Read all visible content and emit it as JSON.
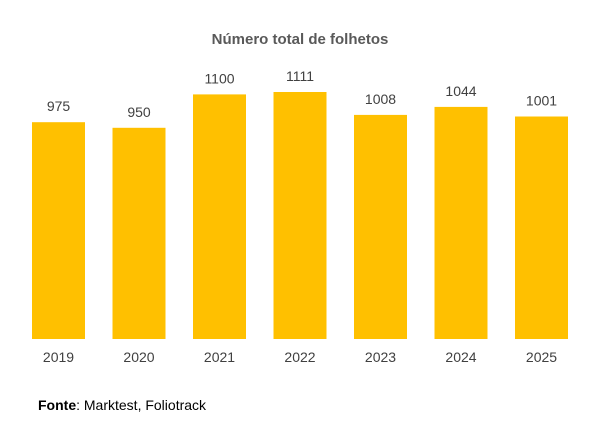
{
  "chart_data": {
    "type": "bar",
    "title": "Número total de folhetos",
    "categories": [
      "2019",
      "2020",
      "2021",
      "2022",
      "2023",
      "2024",
      "2025"
    ],
    "values": [
      975,
      950,
      1100,
      1111,
      1008,
      1044,
      1001
    ],
    "ylim": [
      0,
      1111
    ],
    "bar_color": "#FFC000",
    "grid": false,
    "legend": "none"
  },
  "source": {
    "label": "Fonte",
    "text": ": Marktest, Foliotrack"
  }
}
